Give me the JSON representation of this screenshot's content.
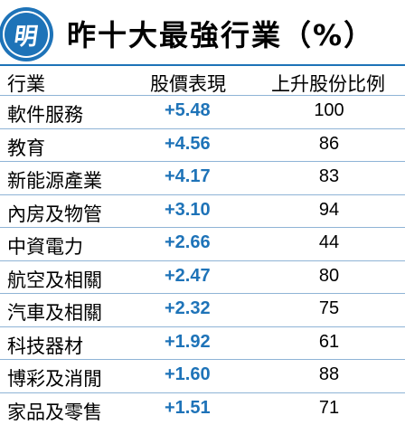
{
  "logo": {
    "char": "明"
  },
  "title": "昨十大最強行業（%）",
  "columns": {
    "sector": "行業",
    "performance": "股價表現",
    "ratio": "上升股份比例"
  },
  "rows": [
    {
      "sector": "軟件服務",
      "performance": "+5.48",
      "ratio": "100"
    },
    {
      "sector": "教育",
      "performance": "+4.56",
      "ratio": "86"
    },
    {
      "sector": "新能源產業",
      "performance": "+4.17",
      "ratio": "83"
    },
    {
      "sector": "內房及物管",
      "performance": "+3.10",
      "ratio": "94"
    },
    {
      "sector": "中資電力",
      "performance": "+2.66",
      "ratio": "44"
    },
    {
      "sector": "航空及相關",
      "performance": "+2.47",
      "ratio": "80"
    },
    {
      "sector": "汽車及相關",
      "performance": "+2.32",
      "ratio": "75"
    },
    {
      "sector": "科技器材",
      "performance": "+1.92",
      "ratio": "61"
    },
    {
      "sector": "博彩及消閒",
      "performance": "+1.60",
      "ratio": "88"
    },
    {
      "sector": "家品及零售",
      "performance": "+1.51",
      "ratio": "71"
    }
  ],
  "colors": {
    "accent": "#1e73b8",
    "divider": "#8fb4d6"
  }
}
